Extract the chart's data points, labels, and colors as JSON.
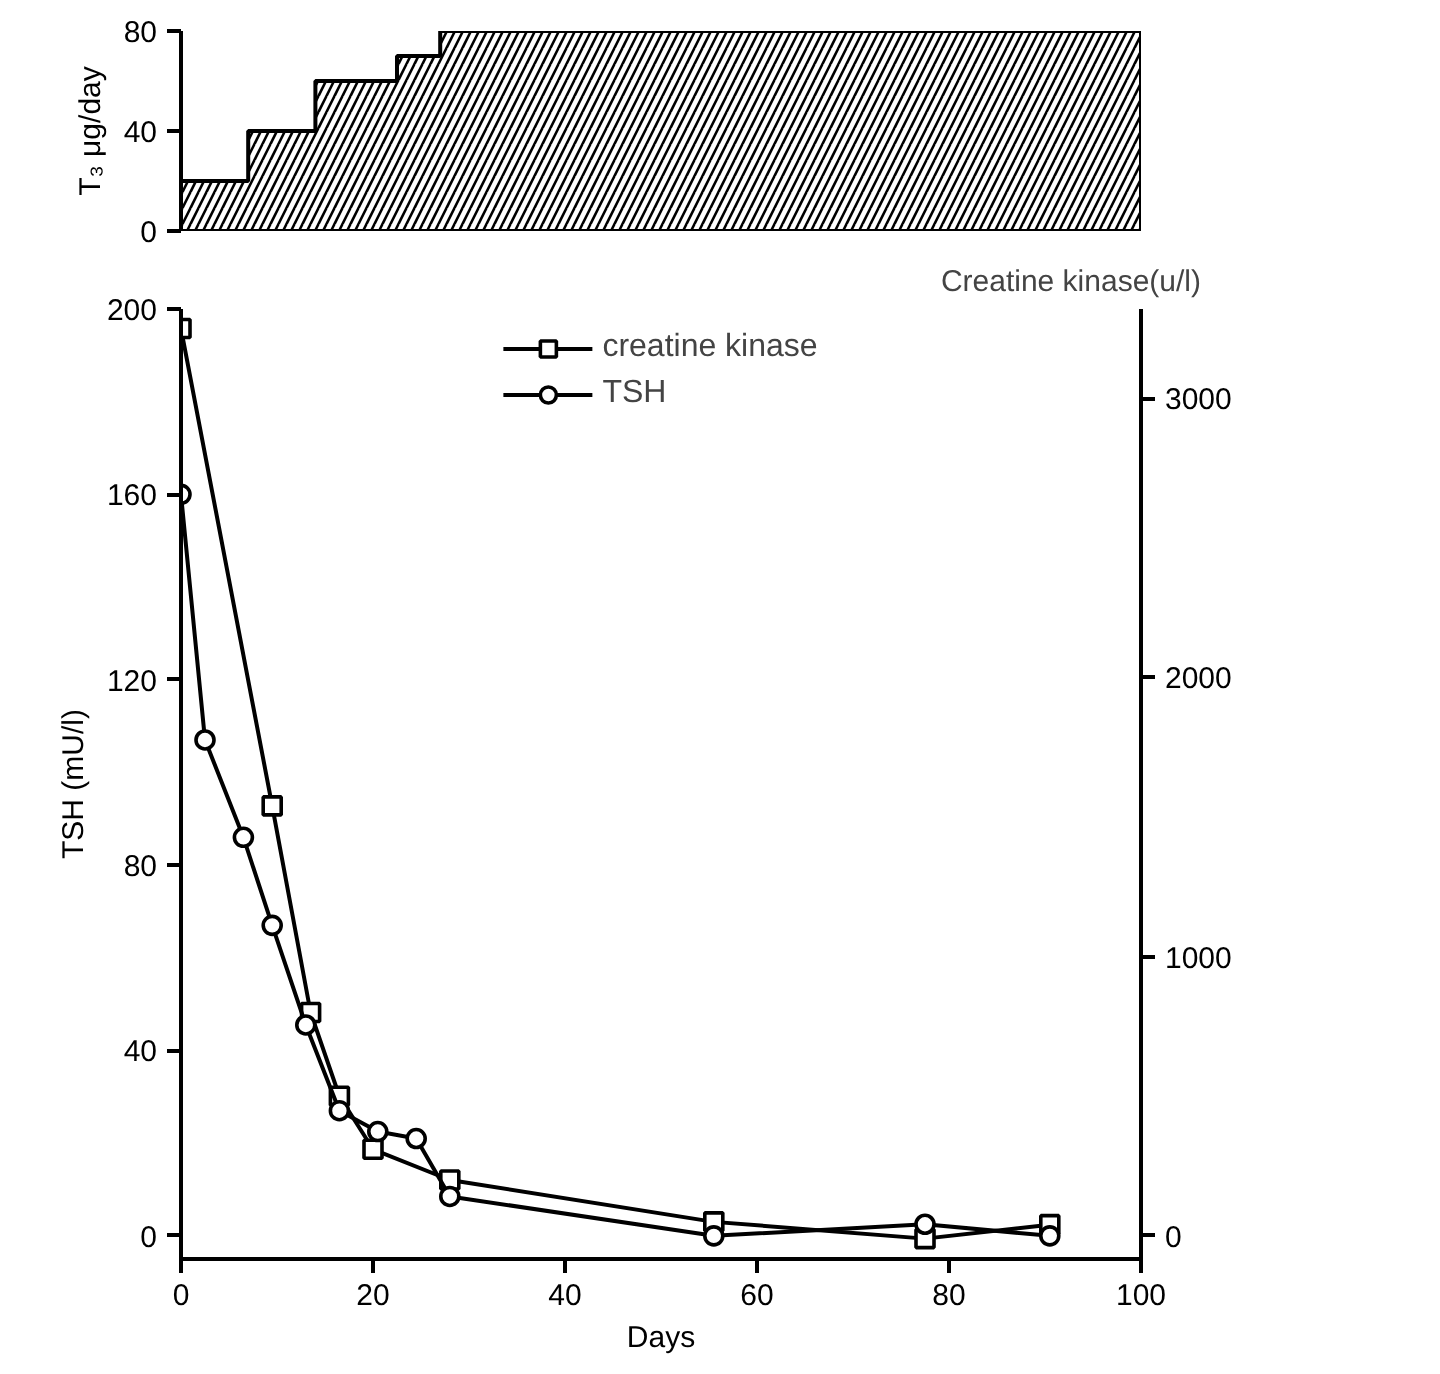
{
  "chart_data": [
    {
      "type": "step",
      "ylabel": "T₃ μg/day",
      "x": [
        0,
        7,
        14,
        22.5,
        27,
        100
      ],
      "values": [
        20,
        40,
        60,
        70,
        80,
        80
      ],
      "color": "#000000",
      "xlim": [
        0,
        100
      ],
      "ylim": [
        0,
        80
      ],
      "yticks": [
        0,
        40,
        80
      ],
      "tick_labels": "y",
      "grid": false
    },
    {
      "type": "line",
      "xlabel": "Days",
      "ylabel": "TSH (mU/l)",
      "y2label": "Creatine kinase(u/l)",
      "xlim": [
        0,
        100
      ],
      "xticks": [
        0,
        20,
        40,
        60,
        80,
        100
      ],
      "ylim": [
        -5,
        200
      ],
      "yticks": [
        0,
        40,
        80,
        120,
        160,
        200
      ],
      "y2lim": [
        -83,
        3320
      ],
      "y2ticks": [
        0,
        1000,
        2000,
        3000
      ],
      "grid": false,
      "legend": "top",
      "line_style": "solid",
      "series": [
        {
          "name": "creatine kinase",
          "color": "#000000",
          "axis": "y2",
          "marker": "square",
          "x": [
            0,
            9.5,
            13.5,
            16.5,
            20,
            28,
            55.5,
            77.5,
            90.5
          ],
          "values": [
            3250,
            1540,
            800,
            500,
            310,
            200,
            50,
            -10,
            40
          ]
        },
        {
          "name": "TSH",
          "color": "#000000",
          "axis": "y",
          "marker": "circle",
          "x": [
            0,
            2.5,
            6.5,
            9.5,
            13,
            16.5,
            20.5,
            24.5,
            28,
            55.5,
            77.5,
            90.5
          ],
          "values": [
            160,
            107,
            86,
            67,
            45.5,
            27,
            22.5,
            21,
            8.5,
            0,
            2.5,
            0
          ]
        }
      ]
    }
  ]
}
